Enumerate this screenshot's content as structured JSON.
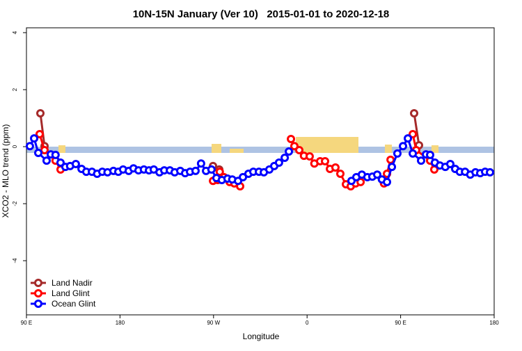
{
  "chart_data": {
    "type": "line",
    "title": "10N-15N January (Ver 10)   2015-01-01 to 2020-12-18",
    "x_label": "Longitude",
    "y_label": "XCO2 - MLO trend (ppm)",
    "xlim": [
      90,
      540
    ],
    "ylim": [
      -5.9,
      4.17
    ],
    "xticks": [
      {
        "value": 90,
        "label": "90 E"
      },
      {
        "value": 180,
        "label": "180"
      },
      {
        "value": 270,
        "label": "90 W"
      },
      {
        "value": 360,
        "label": "0"
      },
      {
        "value": 450,
        "label": "90 E"
      },
      {
        "value": 540,
        "label": "180"
      }
    ],
    "yticks": [
      4,
      2,
      0,
      -2,
      -4
    ],
    "legend": "bottom-left",
    "series": [
      {
        "name": "Land Nadir",
        "color": "#a52a2a",
        "x": [
          103.4,
          107.4,
          null,
          269.5,
          275.5,
          null,
          463,
          467.7
        ],
        "values": [
          1.17,
          0.02,
          null,
          -0.68,
          -0.8,
          null,
          1.17,
          0.05
        ]
      },
      {
        "name": "Land Glint",
        "color": "#ff0000",
        "x": [
          102.7,
          107.4,
          118,
          122.8,
          null,
          269.5,
          274,
          276,
          280,
          285.5,
          290,
          295.6,
          null,
          344.5,
          347.8,
          352.5,
          357,
          362.5,
          367,
          372.6,
          377.3,
          382,
          387.3,
          392,
          397.4,
          402,
          406.7,
          411.5,
          null,
          434,
          436.9,
          440.3,
          null,
          461.7,
          465,
          478.4,
          482.4
        ],
        "values": [
          0.44,
          -0.12,
          -0.49,
          -0.8,
          null,
          -1.2,
          -1.17,
          -0.88,
          -1.07,
          -1.24,
          -1.29,
          -1.39,
          null,
          0.27,
          0.02,
          -0.12,
          -0.32,
          -0.34,
          -0.59,
          -0.51,
          -0.51,
          -0.78,
          -0.73,
          -0.95,
          -1.32,
          -1.39,
          -1.29,
          -1.24,
          null,
          -1.29,
          -0.95,
          -0.46,
          null,
          0.44,
          -0.12,
          -0.49,
          -0.8
        ]
      },
      {
        "name": "Ocean Glint",
        "color": "#0000ff",
        "x": [
          93.3,
          97.4,
          101.4,
          109.4,
          113.4,
          118,
          122.8,
          127.5,
          132,
          137.5,
          143,
          147.6,
          153,
          158,
          163,
          168,
          173.7,
          178.4,
          183,
          188.4,
          193,
          197.8,
          203,
          207.9,
          212.5,
          218,
          222.6,
          228,
          232.6,
          238,
          242.7,
          247.4,
          252.7,
          258,
          262.8,
          268,
          272.8,
          278,
          283.5,
          288,
          293.6,
          298.3,
          303.6,
          308.3,
          313.7,
          318.4,
          323.7,
          328.4,
          333,
          338.5,
          342.5,
          null,
          402.7,
          407.4,
          412.7,
          418,
          422.8,
          427.5,
          432,
          436.9,
          441.6,
          446.9,
          452.3,
          457,
          461.7,
          469.7,
          474.4,
          478.4,
          483,
          487.8,
          493,
          497.8,
          502.5,
          507,
          512,
          517,
          522,
          526.6,
          531.3,
          536
        ],
        "values": [
          0.02,
          0.29,
          -0.22,
          -0.49,
          -0.27,
          -0.29,
          -0.56,
          -0.71,
          -0.68,
          -0.61,
          -0.78,
          -0.88,
          -0.88,
          -0.95,
          -0.88,
          -0.9,
          -0.85,
          -0.88,
          -0.8,
          -0.85,
          -0.76,
          -0.83,
          -0.8,
          -0.83,
          -0.8,
          -0.9,
          -0.83,
          -0.83,
          -0.9,
          -0.85,
          -0.93,
          -0.88,
          -0.85,
          -0.59,
          -0.85,
          -0.8,
          -1.1,
          -1.17,
          -1.12,
          -1.15,
          -1.2,
          -1.07,
          -0.95,
          -0.88,
          -0.88,
          -0.9,
          -0.8,
          -0.68,
          -0.56,
          -0.39,
          -0.17,
          null,
          -1.2,
          -1.07,
          -0.98,
          -1.07,
          -1.05,
          -0.98,
          -1.15,
          -1.24,
          -0.71,
          -0.24,
          0.02,
          0.29,
          -0.24,
          -0.49,
          -0.27,
          -0.29,
          -0.56,
          -0.66,
          -0.71,
          -0.61,
          -0.78,
          -0.88,
          -0.88,
          -0.98,
          -0.9,
          -0.93,
          -0.88,
          -0.9
        ]
      }
    ]
  }
}
